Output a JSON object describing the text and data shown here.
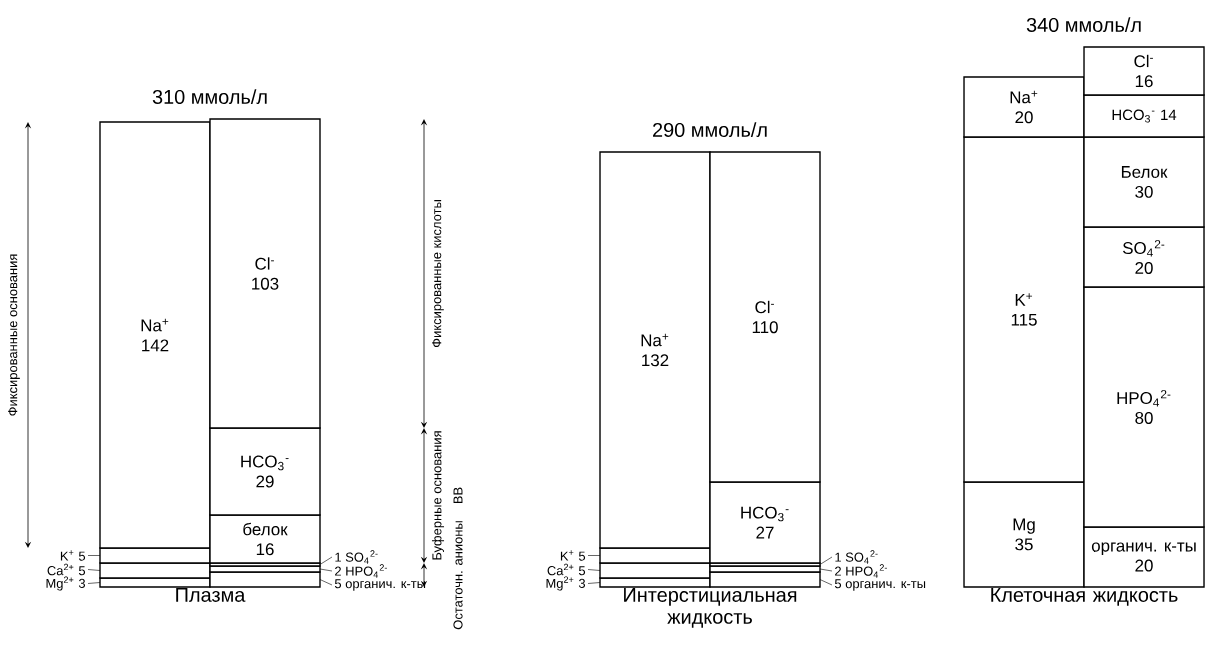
{
  "chart_data": [
    {
      "type": "bar",
      "stacked": true,
      "data_labels": true,
      "tick_labels": false,
      "title": "310 ммоль/л",
      "xlabel": "Плазма",
      "categories": [
        null,
        null
      ],
      "series": [
        {
          "name": "Mg$^{2+}$",
          "color": "#ffffff",
          "values": [
            3,
            null
          ]
        },
        {
          "name": "Ca$^{2+}$",
          "color": "#ffffff",
          "values": [
            5,
            null
          ]
        },
        {
          "name": "K$^{+}$",
          "color": "#ffffff",
          "values": [
            5,
            null
          ]
        },
        {
          "name": "Na$^{+}$",
          "color": "#ffffff",
          "values": [
            142,
            null
          ]
        },
        {
          "name": "органич. к-ты",
          "color": "#ffffff",
          "values": [
            null,
            5
          ]
        },
        {
          "name": "HPO$_{4}$$^{2-}$",
          "color": "#ffffff",
          "values": [
            null,
            2
          ]
        },
        {
          "name": "SO$_{4}$$^{2-}$",
          "color": "#ffffff",
          "values": [
            null,
            1
          ]
        },
        {
          "name": "белок",
          "color": "#ffffff",
          "values": [
            null,
            16
          ]
        },
        {
          "name": "HCO$_{3}$$^{-}$",
          "color": "#ffffff",
          "values": [
            null,
            29
          ]
        },
        {
          "name": "Cl$^{-}$",
          "color": "#ffffff",
          "values": [
            null,
            103
          ]
        }
      ],
      "annotations": [
        "Фиксированные основания",
        "Фиксированные кислоты",
        "Буферные основания",
        "ВВ",
        "Остаточн. анионы"
      ]
    },
    {
      "type": "bar",
      "stacked": true,
      "data_labels": true,
      "tick_labels": false,
      "title": "290 ммоль/л",
      "xlabel": "Интерстициальная жидкость",
      "categories": [
        null,
        null
      ],
      "series": [
        {
          "name": "Mg$^{2+}$",
          "color": "#ffffff",
          "values": [
            3,
            null
          ]
        },
        {
          "name": "Ca$^{2+}$",
          "color": "#ffffff",
          "values": [
            5,
            null
          ]
        },
        {
          "name": "K$^{+}$",
          "color": "#ffffff",
          "values": [
            5,
            null
          ]
        },
        {
          "name": "Na$^{+}$",
          "color": "#ffffff",
          "values": [
            132,
            null
          ]
        },
        {
          "name": "органич. к-ты",
          "color": "#ffffff",
          "values": [
            null,
            5
          ]
        },
        {
          "name": "HPO$_{4}$$^{2-}$",
          "color": "#ffffff",
          "values": [
            null,
            2
          ]
        },
        {
          "name": "SO$_{4}$$^{2-}$",
          "color": "#ffffff",
          "values": [
            null,
            1
          ]
        },
        {
          "name": "HCO$_{3}$$^{-}$",
          "color": "#ffffff",
          "values": [
            null,
            27
          ]
        },
        {
          "name": "Cl$^{-}$",
          "color": "#ffffff",
          "values": [
            null,
            110
          ]
        }
      ]
    },
    {
      "type": "bar",
      "stacked": true,
      "data_labels": true,
      "tick_labels": false,
      "title": "340 ммоль/л",
      "xlabel": "Клеточная жидкость",
      "categories": [
        null,
        null
      ],
      "series": [
        {
          "name": "Mg",
          "color": "#ffffff",
          "values": [
            35,
            null
          ]
        },
        {
          "name": "K$^{+}$",
          "color": "#ffffff",
          "values": [
            115,
            null
          ]
        },
        {
          "name": "Na$^{+}$",
          "color": "#ffffff",
          "values": [
            20,
            null
          ]
        },
        {
          "name": "органич. к-ты",
          "color": "#ffffff",
          "values": [
            null,
            20
          ]
        },
        {
          "name": "HPO$_{4}$$^{2-}$",
          "color": "#ffffff",
          "values": [
            null,
            80
          ]
        },
        {
          "name": "SO$_{4}$$^{2-}$",
          "color": "#ffffff",
          "values": [
            null,
            20
          ]
        },
        {
          "name": "Белок",
          "color": "#ffffff",
          "values": [
            null,
            30
          ]
        },
        {
          "name": "HCO$_{3}$$^{-}$",
          "color": "#ffffff",
          "values": [
            null,
            14
          ]
        },
        {
          "name": "Cl$^{-}$",
          "color": "#ffffff",
          "values": [
            null,
            16
          ]
        }
      ]
    }
  ]
}
